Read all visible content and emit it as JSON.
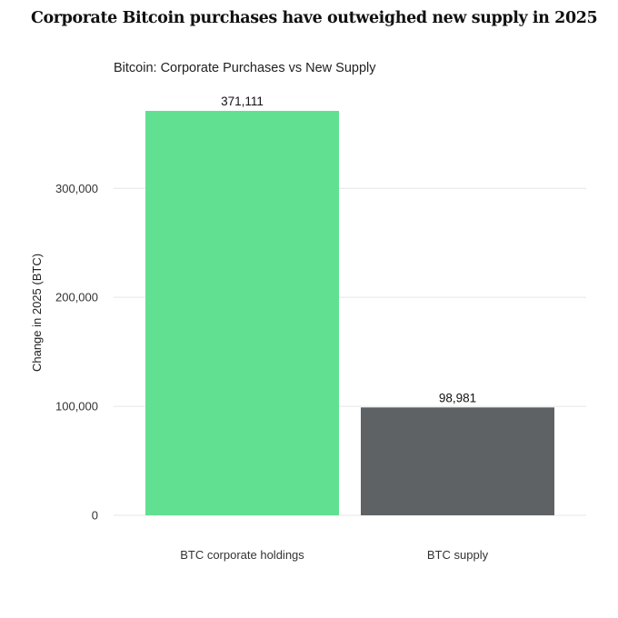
{
  "headline": "Corporate Bitcoin purchases have outweighed new supply in 2025",
  "chart_data": {
    "type": "bar",
    "title": "Bitcoin: Corporate Purchases vs New Supply",
    "xlabel": "",
    "ylabel": "Change in 2025 (BTC)",
    "categories": [
      "BTC corporate holdings",
      "BTC supply"
    ],
    "values": [
      371111,
      98981
    ],
    "data_labels": [
      "371,111",
      "98,981"
    ],
    "colors": [
      "#62e091",
      "#5f6265"
    ],
    "ylim": [
      0,
      371111
    ],
    "yticks": [
      0,
      100000,
      200000,
      300000
    ],
    "ytick_labels": [
      "0",
      "100,000",
      "200,000",
      "300,000"
    ],
    "grid": "horizontal",
    "legend": "none"
  }
}
